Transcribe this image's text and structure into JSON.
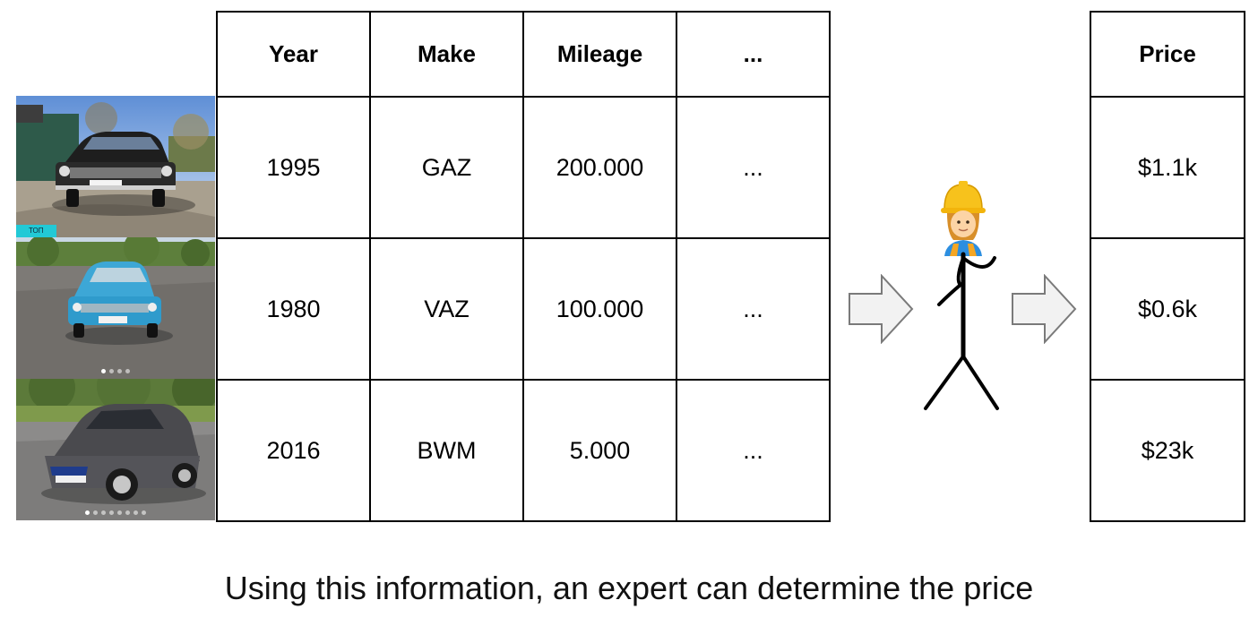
{
  "columns": [
    "Year",
    "Make",
    "Mileage",
    "..."
  ],
  "rows": [
    [
      "1995",
      "GAZ",
      "200.000",
      "..."
    ],
    [
      "1980",
      "VAZ",
      "100.000",
      "..."
    ],
    [
      "2016",
      "BWM",
      "5.000",
      "..."
    ]
  ],
  "price_header": "Price",
  "prices": [
    "$1.1k",
    "$0.6k",
    "$23k"
  ],
  "photo_tag": "ТОП",
  "expert_icon": "construction-worker-emoji",
  "caption": "Using this information, an expert can determine the price",
  "colors": {
    "border": "#000000",
    "arrow_fill": "#f2f2f2",
    "arrow_stroke": "#7a7a7a",
    "tag": "#22c9d6"
  }
}
